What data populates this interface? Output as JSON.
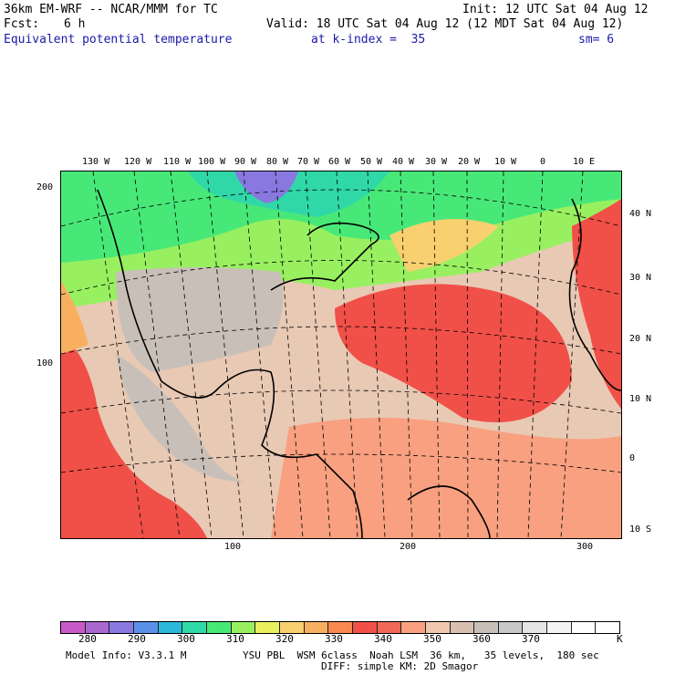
{
  "header": {
    "model": "36km EM-WRF -- NCAR/MMM for TC",
    "init": "Init: 12 UTC Sat 04 Aug 12",
    "fcst_label": "Fcst:",
    "fcst_value": "6 h",
    "valid": "Valid: 18 UTC Sat 04 Aug 12 (12 MDT Sat 04 Aug 12)",
    "field": "Equivalent potential temperature",
    "level": "at k-index =  35",
    "smooth": "sm= 6"
  },
  "map": {
    "lon_labels": [
      "130 W",
      "120 W",
      "110 W",
      "100 W",
      "90 W",
      "80 W",
      "70 W",
      "60 W",
      "50 W",
      "40 W",
      "30 W",
      "20 W",
      "10 W",
      "0",
      "10 E"
    ],
    "lat_labels": [
      "40 N",
      "30 N",
      "20 N",
      "10 N",
      "0",
      "10 S"
    ],
    "y_grid_labels": [
      "200",
      "100"
    ],
    "x_grid_labels": [
      "100",
      "200",
      "300"
    ]
  },
  "colorbar": {
    "colors": [
      "#c85ac8",
      "#a868d0",
      "#8878e0",
      "#5a90e8",
      "#2cb8d8",
      "#30d8a8",
      "#48e878",
      "#98f060",
      "#e8f060",
      "#f8d070",
      "#f8b060",
      "#f88850",
      "#f05048",
      "#f06858",
      "#f8a080",
      "#f0c8b0",
      "#d8c0b0",
      "#c8c0b8",
      "#c8c8c8",
      "#e4e4e4",
      "#f4f4f4",
      "#ffffff",
      "#ffffff"
    ],
    "labels": [
      "280",
      "290",
      "300",
      "310",
      "320",
      "330",
      "340",
      "350",
      "360",
      "370",
      "K"
    ]
  },
  "footer": {
    "info": "Model Info: V3.3.1 M",
    "physics": "YSU PBL  WSM 6class  Noah LSM  36 km,   35 levels,  180 sec",
    "physics2": "DIFF: simple KM: 2D Smagor"
  }
}
